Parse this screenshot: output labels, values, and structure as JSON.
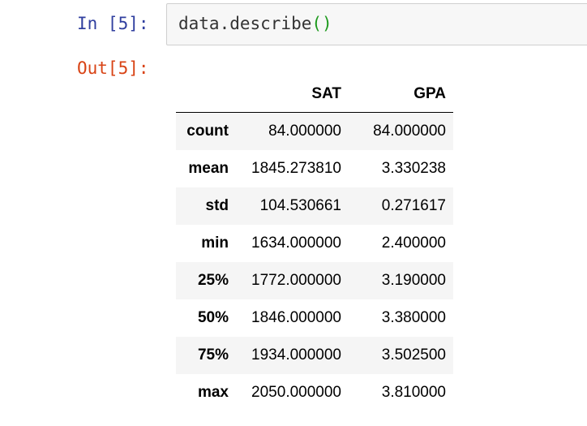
{
  "cell": {
    "in_prompt": "In [5]:",
    "code_call": "data.describe",
    "code_parens": "()",
    "out_prompt": "Out[5]:"
  },
  "table": {
    "columns": [
      "",
      "SAT",
      "GPA"
    ],
    "rows": [
      {
        "label": "count",
        "sat": "84.000000",
        "gpa": "84.000000"
      },
      {
        "label": "mean",
        "sat": "1845.273810",
        "gpa": "3.330238"
      },
      {
        "label": "std",
        "sat": "104.530661",
        "gpa": "0.271617"
      },
      {
        "label": "min",
        "sat": "1634.000000",
        "gpa": "2.400000"
      },
      {
        "label": "25%",
        "sat": "1772.000000",
        "gpa": "3.190000"
      },
      {
        "label": "50%",
        "sat": "1846.000000",
        "gpa": "3.380000"
      },
      {
        "label": "75%",
        "sat": "1934.000000",
        "gpa": "3.502500"
      },
      {
        "label": "max",
        "sat": "2050.000000",
        "gpa": "3.810000"
      }
    ]
  }
}
